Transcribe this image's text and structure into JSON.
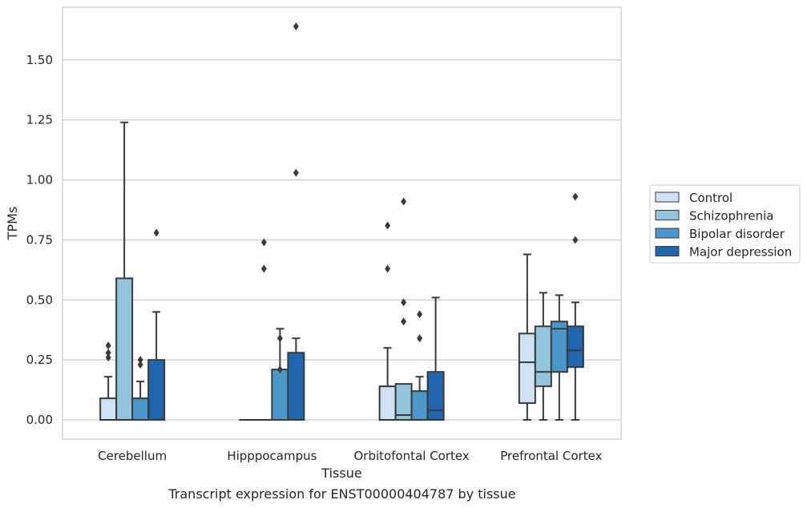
{
  "caption": "Transcript expression for ENST00000404787 by tissue",
  "chart_data": {
    "type": "box",
    "xlabel": "Tissue",
    "ylabel": "TPMs",
    "ylim": [
      -0.08,
      1.72
    ],
    "yticks": [
      0.0,
      0.25,
      0.5,
      0.75,
      1.0,
      1.25,
      1.5
    ],
    "ytick_labels": [
      "0.00",
      "0.25",
      "0.50",
      "0.75",
      "1.00",
      "1.25",
      "1.50"
    ],
    "grid": true,
    "legend_position": "right",
    "categories": [
      "Cerebellum",
      "Hipppocampus",
      "Orbitofontal Cortex",
      "Prefrontal Cortex"
    ],
    "series": [
      {
        "name": "Control",
        "color": "#cfe1f2",
        "boxes": [
          {
            "min": 0.0,
            "q1": 0.0,
            "median": 0.0,
            "q3": 0.09,
            "max": 0.18,
            "outliers": [
              0.31,
              0.28,
              0.26
            ]
          },
          {
            "min": 0.0,
            "q1": 0.0,
            "median": 0.0,
            "q3": 0.0,
            "max": 0.0,
            "outliers": []
          },
          {
            "min": 0.0,
            "q1": 0.0,
            "median": 0.0,
            "q3": 0.14,
            "max": 0.3,
            "outliers": [
              0.81,
              0.63
            ]
          },
          {
            "min": 0.0,
            "q1": 0.07,
            "median": 0.24,
            "q3": 0.36,
            "max": 0.69,
            "outliers": []
          }
        ]
      },
      {
        "name": "Schizophrenia",
        "color": "#93c4de",
        "boxes": [
          {
            "min": 0.0,
            "q1": 0.0,
            "median": 0.0,
            "q3": 0.59,
            "max": 1.24,
            "outliers": []
          },
          {
            "min": 0.0,
            "q1": 0.0,
            "median": 0.0,
            "q3": 0.0,
            "max": 0.0,
            "outliers": [
              0.74,
              0.63
            ]
          },
          {
            "min": 0.0,
            "q1": 0.0,
            "median": 0.02,
            "q3": 0.15,
            "max": 0.15,
            "outliers": [
              0.91,
              0.49,
              0.41
            ]
          },
          {
            "min": 0.0,
            "q1": 0.14,
            "median": 0.2,
            "q3": 0.39,
            "max": 0.53,
            "outliers": []
          }
        ]
      },
      {
        "name": "Bipolar disorder",
        "color": "#4a98c9",
        "boxes": [
          {
            "min": 0.0,
            "q1": 0.0,
            "median": 0.0,
            "q3": 0.09,
            "max": 0.16,
            "outliers": [
              0.25,
              0.23
            ]
          },
          {
            "min": 0.0,
            "q1": 0.0,
            "median": 0.0,
            "q3": 0.21,
            "max": 0.38,
            "outliers": [
              0.34,
              0.21
            ]
          },
          {
            "min": 0.0,
            "q1": 0.0,
            "median": 0.0,
            "q3": 0.12,
            "max": 0.18,
            "outliers": [
              0.44,
              0.34
            ]
          },
          {
            "min": 0.0,
            "q1": 0.2,
            "median": 0.38,
            "q3": 0.41,
            "max": 0.52,
            "outliers": []
          }
        ]
      },
      {
        "name": "Major depression",
        "color": "#2166ac",
        "boxes": [
          {
            "min": 0.0,
            "q1": 0.0,
            "median": 0.0,
            "q3": 0.25,
            "max": 0.45,
            "outliers": [
              0.78
            ]
          },
          {
            "min": 0.0,
            "q1": 0.0,
            "median": 0.0,
            "q3": 0.28,
            "max": 0.34,
            "outliers": [
              1.64,
              1.03
            ]
          },
          {
            "min": 0.0,
            "q1": 0.0,
            "median": 0.04,
            "q3": 0.2,
            "max": 0.51,
            "outliers": []
          },
          {
            "min": 0.0,
            "q1": 0.22,
            "median": 0.29,
            "q3": 0.39,
            "max": 0.49,
            "outliers": [
              0.93,
              0.75
            ]
          }
        ]
      }
    ]
  }
}
